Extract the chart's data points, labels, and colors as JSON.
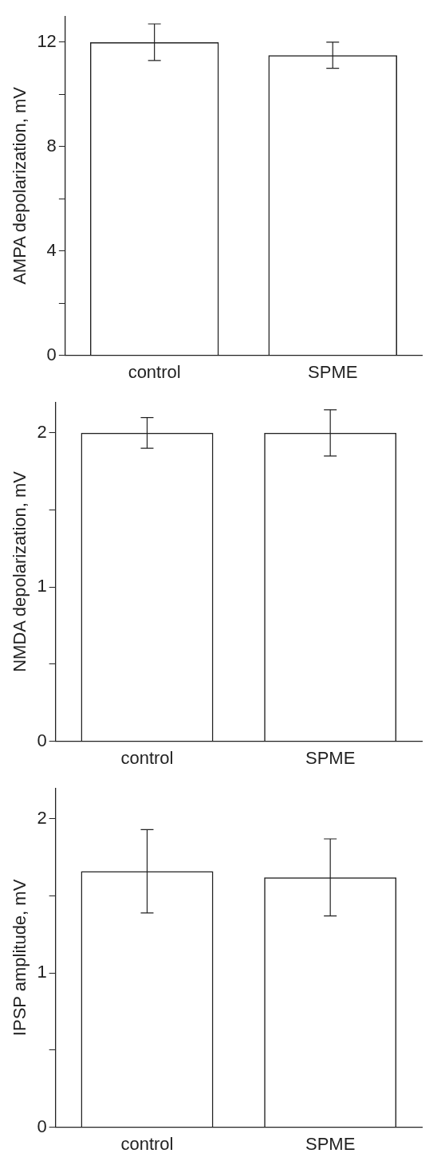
{
  "chart_data": [
    {
      "type": "bar",
      "ylabel": "AMPA depolarization, mV",
      "categories": [
        "control",
        "SPME"
      ],
      "values": [
        12.0,
        11.5
      ],
      "errors": [
        0.7,
        0.5
      ],
      "color": "#222222",
      "ylim": [
        0,
        13
      ],
      "yticks": [
        0,
        {
          "value": 2,
          "label": null
        },
        4,
        {
          "value": 6,
          "label": null
        },
        8,
        {
          "value": 10,
          "label": null
        },
        12
      ]
    },
    {
      "type": "bar",
      "ylabel": "NMDA depolarization, mV",
      "categories": [
        "control",
        "SPME"
      ],
      "values": [
        2.0,
        2.0
      ],
      "errors": [
        0.1,
        0.15
      ],
      "color": "#222222",
      "ylim": [
        0,
        2.2
      ],
      "yticks": [
        0,
        {
          "value": 0.5,
          "label": null
        },
        1,
        {
          "value": 1.5,
          "label": null
        },
        2
      ]
    },
    {
      "type": "bar",
      "ylabel": "IPSP amplitude, mV",
      "categories": [
        "control",
        "SPME"
      ],
      "values": [
        1.66,
        1.62
      ],
      "errors": [
        0.27,
        0.25
      ],
      "color": "#222222",
      "ylim": [
        0,
        2.2
      ],
      "yticks": [
        0,
        {
          "value": 0.5,
          "label": null
        },
        1,
        {
          "value": 1.5,
          "label": null
        },
        2
      ]
    }
  ]
}
